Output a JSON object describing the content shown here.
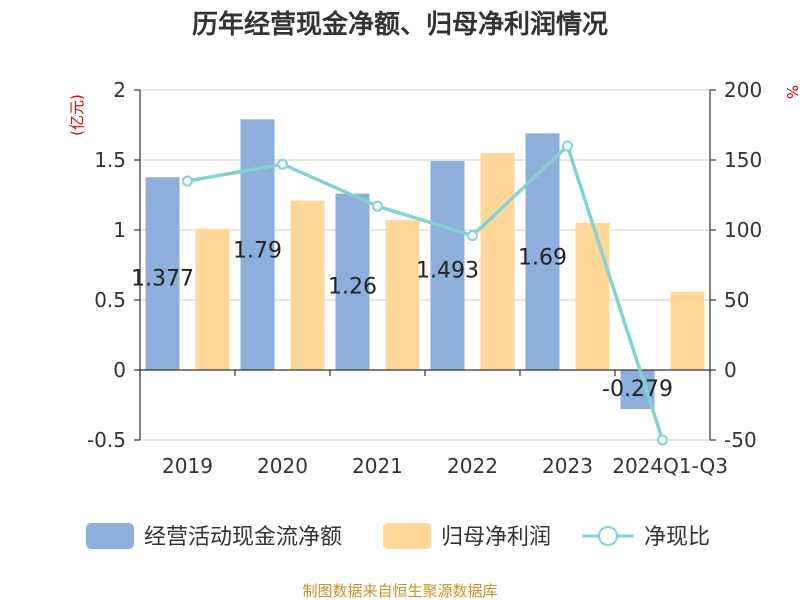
{
  "chart_data": {
    "type": "bar+line",
    "title": "历年经营现金净额、归母净利润情况",
    "categories": [
      "2019",
      "2020",
      "2021",
      "2022",
      "2023",
      "2024Q1-Q3"
    ],
    "left_axis": {
      "unit": "(亿元)",
      "ylim": [
        -0.5,
        2
      ],
      "ticks": [
        -0.5,
        0,
        0.5,
        1,
        1.5,
        2
      ],
      "tick_labels": [
        "-0.5",
        "0",
        "0.5",
        "1",
        "1.5",
        "2"
      ]
    },
    "right_axis": {
      "unit": "%",
      "ylim": [
        -50,
        200
      ],
      "ticks": [
        -50,
        0,
        50,
        100,
        150,
        200
      ],
      "tick_labels": [
        "-50",
        "0",
        "50",
        "100",
        "150",
        "200"
      ]
    },
    "series": [
      {
        "name": "经营活动现金流净额",
        "type": "bar",
        "axis": "left",
        "color": "#8eaedc",
        "values": [
          1.377,
          1.79,
          1.26,
          1.493,
          1.69,
          -0.279
        ],
        "labels": [
          "1.377",
          "1.79",
          "1.26",
          "1.493",
          "1.69",
          "-0.279"
        ]
      },
      {
        "name": "归母净利润",
        "type": "bar",
        "axis": "left",
        "color": "#ffd899",
        "values": [
          1.01,
          1.21,
          1.07,
          1.55,
          1.05,
          0.56
        ]
      },
      {
        "name": "净现比",
        "type": "line",
        "axis": "right",
        "color": "#84d3d3",
        "values": [
          135,
          147,
          117,
          96,
          160,
          -50
        ]
      }
    ],
    "source": "制图数据来自恒生聚源数据库",
    "colors": {
      "unit": "#e00000",
      "source": "#c8942a",
      "grid": "#cccccc",
      "axis": "#333333"
    }
  }
}
